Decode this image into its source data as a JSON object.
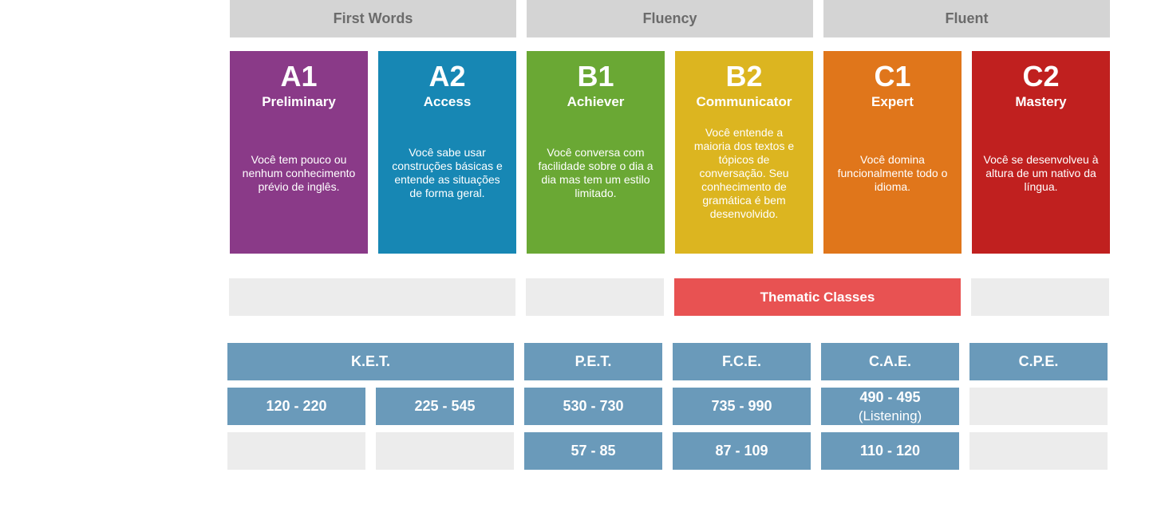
{
  "groups": [
    "First Words",
    "Fluency",
    "Fluent"
  ],
  "levels": [
    {
      "code": "A1",
      "name": "Preliminary",
      "description": "Você tem pouco ou nenhum conhecimento prévio de inglês."
    },
    {
      "code": "A2",
      "name": "Access",
      "description": "Você sabe usar construções básicas e entende as situações de forma geral."
    },
    {
      "code": "B1",
      "name": "Achiever",
      "description": "Você conversa com facilidade sobre o dia a dia mas tem um estilo limitado."
    },
    {
      "code": "B2",
      "name": "Communicator",
      "description": "Você entende a maioria dos textos e tópicos de conversação. Seu conhecimento de gramática é bem desenvolvido."
    },
    {
      "code": "C1",
      "name": "Expert",
      "description": "Você domina funcionalmente todo o idioma."
    },
    {
      "code": "C2",
      "name": "Mastery",
      "description": "Você se desenvolveu à altura de um nativo da língua."
    }
  ],
  "thematic": "Thematic Classes",
  "exams": [
    "K.E.T.",
    "P.E.T.",
    "F.C.E.",
    "C.A.E.",
    "C.P.E."
  ],
  "scores": {
    "ket_low": "120 - 220",
    "ket_high": "225 - 545",
    "pet": "530 - 730",
    "fce": "735 - 990",
    "cae": "490 - 495",
    "cae_note": "(Listening)",
    "pet_2": "57 - 85",
    "fce_2": "87 - 109",
    "cae_2": "110 - 120"
  }
}
